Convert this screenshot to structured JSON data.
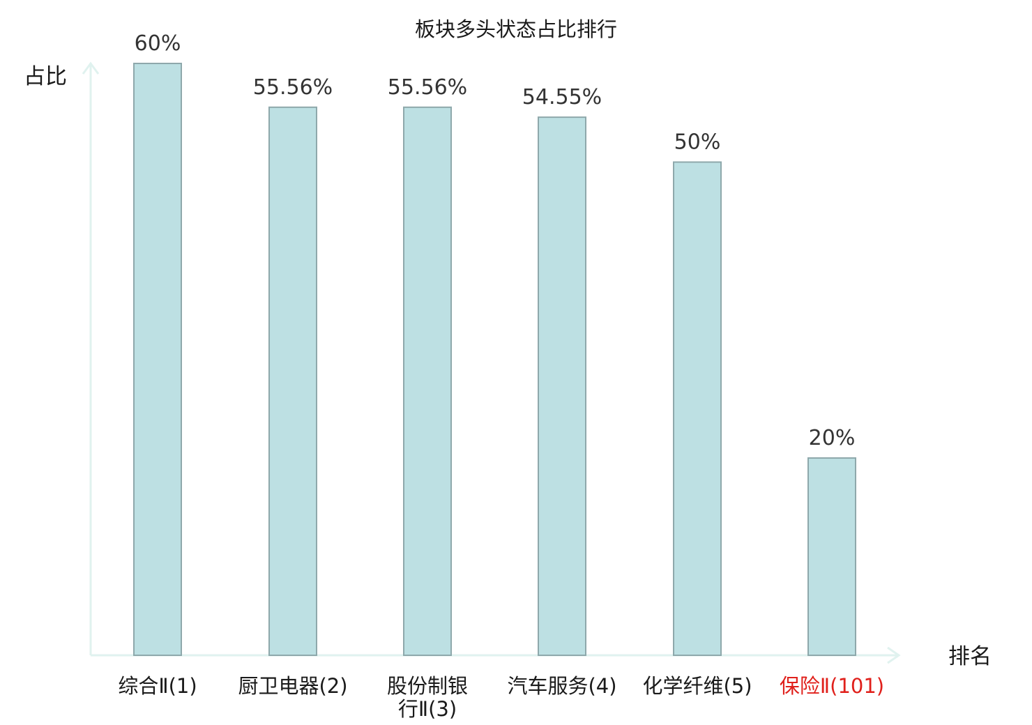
{
  "chart_data": {
    "type": "bar",
    "title": "板块多头状态占比排行",
    "ylabel": "占比",
    "xlabel": "排名",
    "ylim": [
      0,
      61.5
    ],
    "grid": false,
    "legend": "none",
    "categories": [
      [
        "综合Ⅱ(1)"
      ],
      [
        "厨卫电器(2)"
      ],
      [
        "股份制银",
        "行Ⅱ(3)"
      ],
      [
        "汽车服务(4)"
      ],
      [
        "化学纤维(5)"
      ],
      [
        "保险Ⅱ(101)"
      ]
    ],
    "values": [
      60,
      55.56,
      55.56,
      54.55,
      50,
      20
    ],
    "value_labels": [
      "60%",
      "55.56%",
      "55.56%",
      "54.55%",
      "50%",
      "20%"
    ],
    "highlight_index": 5,
    "colors": {
      "bar_fill": "#bde0e3",
      "bar_stroke": "#8ea8ab",
      "axis": "#e0f2ef",
      "highlight_text": "#e0201b",
      "text": "#1a1a1a"
    }
  }
}
